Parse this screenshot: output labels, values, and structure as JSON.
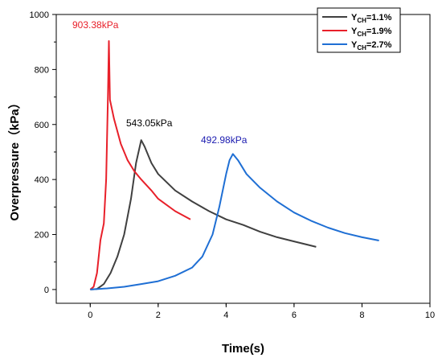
{
  "chart_data": {
    "type": "line",
    "xlabel": "Time(s)",
    "ylabel": "Overpressure（kPa）",
    "xlim": [
      -1,
      10
    ],
    "ylim": [
      -50,
      1000
    ],
    "x_ticks": [
      0,
      2,
      4,
      6,
      8,
      10
    ],
    "y_ticks": [
      0,
      200,
      400,
      600,
      800,
      1000
    ],
    "legend_position": "top-right",
    "series": [
      {
        "name": "Y_CH=1.1%",
        "legend": {
          "main": "Y",
          "sub": "CH",
          "rest": "=1.1%"
        },
        "color": "#404040",
        "points": [
          [
            0,
            0
          ],
          [
            0.2,
            2
          ],
          [
            0.4,
            20
          ],
          [
            0.6,
            60
          ],
          [
            0.8,
            120
          ],
          [
            1.0,
            200
          ],
          [
            1.2,
            330
          ],
          [
            1.35,
            460
          ],
          [
            1.5,
            543.05
          ],
          [
            1.6,
            520
          ],
          [
            1.8,
            460
          ],
          [
            2.0,
            420
          ],
          [
            2.5,
            360
          ],
          [
            3.0,
            320
          ],
          [
            3.5,
            285
          ],
          [
            4.0,
            255
          ],
          [
            4.5,
            235
          ],
          [
            5.0,
            210
          ],
          [
            5.5,
            190
          ],
          [
            6.0,
            175
          ],
          [
            6.65,
            155
          ]
        ]
      },
      {
        "name": "Y_CH=1.9%",
        "legend": {
          "main": "Y",
          "sub": "CH",
          "rest": "=1.9%"
        },
        "color": "#e8202a",
        "points": [
          [
            0,
            0
          ],
          [
            0.1,
            10
          ],
          [
            0.2,
            60
          ],
          [
            0.3,
            180
          ],
          [
            0.4,
            240
          ],
          [
            0.47,
            400
          ],
          [
            0.52,
            700
          ],
          [
            0.55,
            903.38
          ],
          [
            0.58,
            690
          ],
          [
            0.7,
            620
          ],
          [
            0.9,
            530
          ],
          [
            1.1,
            470
          ],
          [
            1.3,
            430
          ],
          [
            1.5,
            400
          ],
          [
            1.8,
            360
          ],
          [
            2.0,
            330
          ],
          [
            2.5,
            285
          ],
          [
            2.95,
            255
          ]
        ]
      },
      {
        "name": "Y_CH=2.7%",
        "legend": {
          "main": "Y",
          "sub": "CH",
          "rest": "=2.7%"
        },
        "color": "#1f6fd4",
        "points": [
          [
            0,
            0
          ],
          [
            0.5,
            4
          ],
          [
            1.0,
            10
          ],
          [
            1.5,
            20
          ],
          [
            2.0,
            30
          ],
          [
            2.5,
            50
          ],
          [
            3.0,
            80
          ],
          [
            3.3,
            120
          ],
          [
            3.6,
            200
          ],
          [
            3.8,
            300
          ],
          [
            4.0,
            420
          ],
          [
            4.1,
            470
          ],
          [
            4.2,
            492.98
          ],
          [
            4.35,
            470
          ],
          [
            4.6,
            420
          ],
          [
            5.0,
            370
          ],
          [
            5.5,
            320
          ],
          [
            6.0,
            280
          ],
          [
            6.5,
            250
          ],
          [
            7.0,
            225
          ],
          [
            7.5,
            205
          ],
          [
            8.0,
            190
          ],
          [
            8.5,
            178
          ]
        ]
      }
    ],
    "annotations": [
      {
        "text": "903.38kPa",
        "color": "#e8202a"
      },
      {
        "text": "543.05kPa",
        "color": "#000000"
      },
      {
        "text": "492.98kPa",
        "color": "#1a1ab0"
      }
    ]
  }
}
